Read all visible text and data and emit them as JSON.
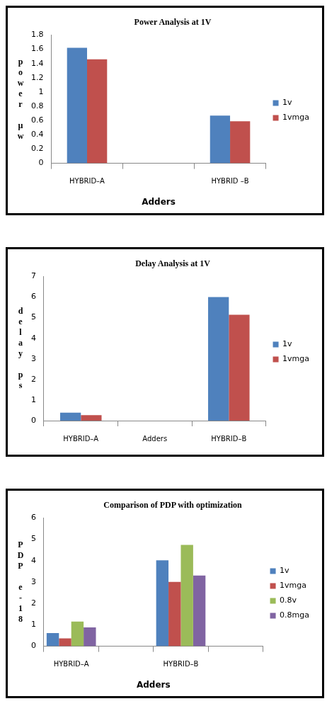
{
  "chart_data": [
    {
      "type": "bar",
      "title": "Power Analysis at 1V",
      "xlabel": "Adders",
      "ylabel": "power µw",
      "categories": [
        "HYBRID–A",
        null,
        "HYBRID –B"
      ],
      "series": [
        {
          "name": "1v",
          "color": "#4f81bd",
          "values": [
            1.62,
            null,
            0.67
          ]
        },
        {
          "name": "1vmga",
          "color": "#c0504d",
          "values": [
            1.46,
            null,
            0.59
          ]
        }
      ],
      "ylim": [
        0,
        1.8
      ],
      "yticks": [
        0,
        0.2,
        0.4,
        0.6,
        0.8,
        1,
        1.2,
        1.4,
        1.6,
        1.8
      ],
      "grid": false,
      "legend": "right"
    },
    {
      "type": "bar",
      "title": "Delay Analysis at 1V",
      "ylabel": "delay ps",
      "categories": [
        "HYBRID–A",
        "Adders",
        "HYBRID–B"
      ],
      "series": [
        {
          "name": "1v",
          "color": "#4f81bd",
          "values": [
            0.39,
            null,
            6.0
          ]
        },
        {
          "name": "1vmga",
          "color": "#c0504d",
          "values": [
            0.27,
            null,
            5.14
          ]
        }
      ],
      "ylim": [
        0,
        7
      ],
      "yticks": [
        0,
        1,
        2,
        3,
        4,
        5,
        6,
        7
      ],
      "grid": false,
      "legend": "right"
    },
    {
      "type": "bar",
      "title": "Comparison of PDP with optimization",
      "xlabel": "Adders",
      "ylabel": "PDP e-18",
      "categories": [
        "HYBRID–A",
        null,
        "HYBRID–B",
        null
      ],
      "series": [
        {
          "name": "1v",
          "color": "#4f81bd",
          "values": [
            0.62,
            null,
            4.02,
            null
          ]
        },
        {
          "name": "1vmga",
          "color": "#c0504d",
          "values": [
            0.37,
            null,
            3.01,
            null
          ]
        },
        {
          "name": "0.8v",
          "color": "#9bbb59",
          "values": [
            1.15,
            null,
            4.74,
            null
          ]
        },
        {
          "name": "0.8mga",
          "color": "#8064a2",
          "values": [
            0.88,
            null,
            3.31,
            null
          ]
        }
      ],
      "ylim": [
        0,
        6
      ],
      "yticks": [
        0,
        1,
        2,
        3,
        4,
        5,
        6
      ],
      "grid": false,
      "legend": "right"
    }
  ]
}
